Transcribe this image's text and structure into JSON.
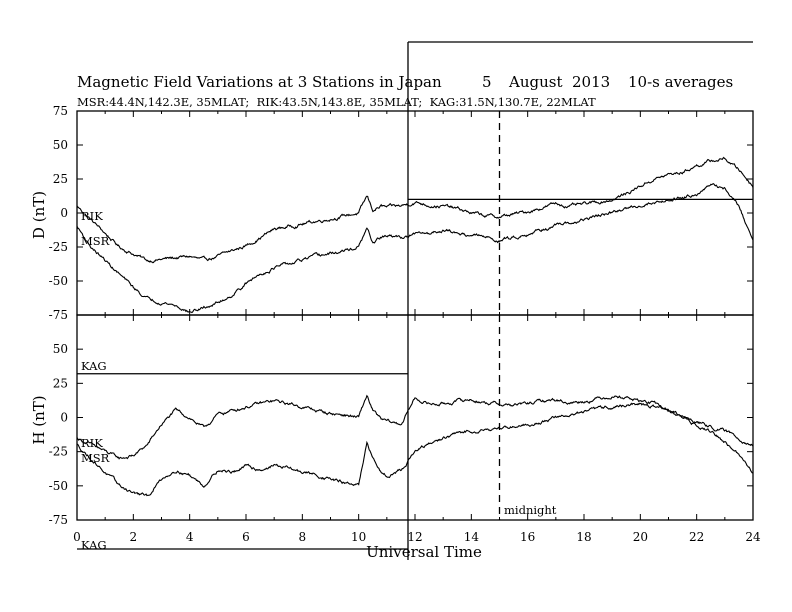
{
  "header": {
    "title": "Magnetic Field Variations at 3 Stations in Japan",
    "day": "5",
    "month_year": "August  2013",
    "averaging": "10-s averages",
    "stations_line": "MSR:44.4N,142.3E, 35MLAT;  RIK:43.5N,143.8E, 35MLAT;  KAG:31.5N,130.7E, 22MLAT"
  },
  "chart_data": [
    {
      "type": "line",
      "panel": "top",
      "ylabel": "D (nT)",
      "xlim": [
        0,
        24
      ],
      "ylim": [
        -75,
        75
      ],
      "yticks": [
        75,
        50,
        25,
        0,
        -25,
        -50,
        -75
      ],
      "series": [
        {
          "name": "RIK",
          "x": [
            0,
            0.5,
            1,
            1.5,
            2,
            2.5,
            3,
            3.5,
            4,
            4.5,
            5,
            5.5,
            6,
            6.5,
            7,
            7.5,
            8,
            8.5,
            9,
            9.5,
            10,
            10.3,
            10.5,
            10.8,
            11,
            11.5,
            12,
            12.5,
            13,
            13.5,
            14,
            14.5,
            15,
            15.5,
            16,
            16.5,
            17,
            17.5,
            18,
            18.5,
            19,
            19.5,
            20,
            20.5,
            21,
            21.5,
            22,
            22.5,
            23,
            23.5,
            24
          ],
          "y": [
            5,
            -5,
            -15,
            -25,
            -30,
            -35,
            -34,
            -33,
            -32,
            -35,
            -32,
            -28,
            -24,
            -18,
            -12,
            -10,
            -8,
            -6,
            -4,
            -2,
            0,
            12,
            2,
            5,
            4,
            5,
            8,
            6,
            5,
            3,
            0,
            -2,
            -3,
            -1,
            1,
            4,
            7,
            5,
            6,
            8,
            10,
            14,
            20,
            25,
            28,
            30,
            35,
            38,
            40,
            32,
            20
          ]
        },
        {
          "name": "MSR",
          "x": [
            0,
            0.5,
            1,
            1.5,
            2,
            2.5,
            3,
            3.5,
            4,
            4.5,
            5,
            5.5,
            6,
            6.5,
            7,
            7.5,
            8,
            8.5,
            9,
            9.5,
            10,
            10.3,
            10.5,
            10.8,
            11,
            11.5,
            12,
            12.5,
            13,
            13.5,
            14,
            14.5,
            15,
            15.5,
            16,
            16.5,
            17,
            17.5,
            18,
            18.5,
            19,
            19.5,
            20,
            20.5,
            21,
            21.5,
            22,
            22.5,
            23,
            23.5,
            24
          ],
          "y": [
            -10,
            -25,
            -35,
            -45,
            -55,
            -63,
            -65,
            -68,
            -73,
            -70,
            -66,
            -60,
            -52,
            -45,
            -40,
            -38,
            -35,
            -32,
            -30,
            -28,
            -25,
            -12,
            -22,
            -18,
            -17,
            -18,
            -16,
            -15,
            -12,
            -15,
            -16,
            -18,
            -20,
            -18,
            -15,
            -12,
            -10,
            -8,
            -5,
            -2,
            0,
            3,
            6,
            8,
            10,
            12,
            15,
            20,
            18,
            5,
            -20
          ]
        }
      ]
    },
    {
      "type": "line",
      "panel": "bottom",
      "ylabel": "H (nT)",
      "xlabel": "Universal Time",
      "xlim": [
        0,
        24
      ],
      "ylim": [
        -75,
        75
      ],
      "xticks": [
        0,
        2,
        4,
        6,
        8,
        10,
        12,
        14,
        16,
        18,
        20,
        22,
        24
      ],
      "yticks": [
        50,
        25,
        0,
        -25,
        -50,
        -75
      ],
      "series": [
        {
          "name": "RIK",
          "x": [
            0,
            0.5,
            1,
            1.5,
            2,
            2.5,
            3,
            3.5,
            4,
            4.5,
            5,
            5.5,
            6,
            6.5,
            7,
            7.5,
            8,
            8.5,
            9,
            9.5,
            10,
            10.3,
            10.5,
            10.8,
            11,
            11.5,
            12,
            12.5,
            13,
            13.5,
            14,
            14.5,
            15,
            15.5,
            16,
            16.5,
            17,
            17.5,
            18,
            18.5,
            19,
            19.5,
            20,
            20.5,
            21,
            21.5,
            22,
            22.5,
            23,
            23.5,
            24
          ],
          "y": [
            -15,
            -20,
            -25,
            -30,
            -28,
            -20,
            -5,
            5,
            0,
            -8,
            2,
            5,
            8,
            10,
            12,
            10,
            8,
            5,
            3,
            2,
            0,
            16,
            5,
            -2,
            -3,
            -5,
            14,
            10,
            10,
            12,
            13,
            11,
            10,
            9,
            10,
            12,
            13,
            11,
            12,
            14,
            16,
            15,
            12,
            10,
            5,
            0,
            -3,
            -7,
            -10,
            -15,
            -20
          ]
        },
        {
          "name": "MSR",
          "x": [
            0,
            0.5,
            1,
            1.5,
            2,
            2.5,
            3,
            3.5,
            4,
            4.5,
            5,
            5.5,
            6,
            6.5,
            7,
            7.5,
            8,
            8.5,
            9,
            9.5,
            10,
            10.3,
            10.5,
            10.8,
            11,
            11.5,
            12,
            12.5,
            13,
            13.5,
            14,
            14.5,
            15,
            15.5,
            16,
            16.5,
            17,
            17.5,
            18,
            18.5,
            19,
            19.5,
            20,
            20.5,
            21,
            21.5,
            22,
            22.5,
            23,
            23.5,
            24
          ],
          "y": [
            -20,
            -30,
            -40,
            -50,
            -55,
            -58,
            -45,
            -38,
            -42,
            -50,
            -38,
            -40,
            -36,
            -38,
            -35,
            -37,
            -40,
            -42,
            -45,
            -48,
            -50,
            -20,
            -30,
            -40,
            -42,
            -38,
            -25,
            -20,
            -15,
            -12,
            -10,
            -8,
            -8,
            -6,
            -5,
            -3,
            0,
            2,
            4,
            6,
            8,
            9,
            10,
            8,
            5,
            0,
            -5,
            -10,
            -18,
            -28,
            -40
          ]
        }
      ]
    }
  ],
  "station_labels": {
    "top_rik": "RIK",
    "top_msr": "MSR",
    "bot_kag": "KAG",
    "bot_rik": "RIK",
    "bot_msr": "MSR",
    "axis_kag": "KAG"
  },
  "annotations": {
    "midnight_label": "midnight",
    "midnight_ut": 15,
    "top_reference_line_value": 10,
    "bottom_reference_line_value": 32
  }
}
